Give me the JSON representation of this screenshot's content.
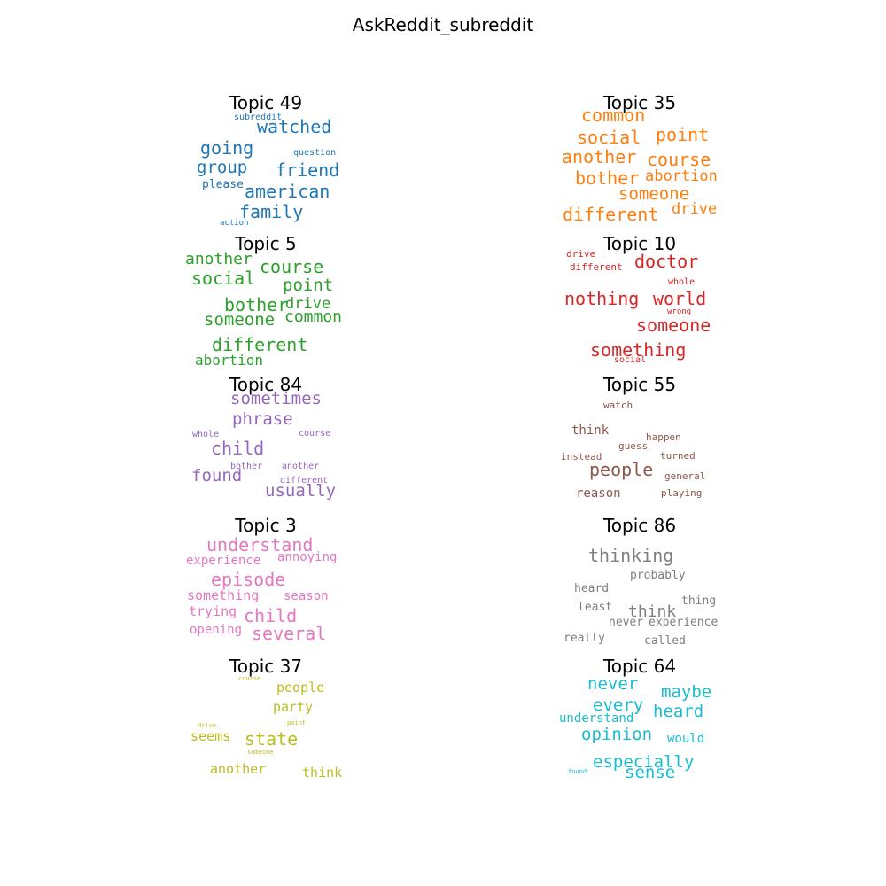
{
  "title": "AskReddit_subreddit",
  "chart_data": {
    "type": "wordcloud",
    "title": "AskReddit_subreddit",
    "topics": [
      {
        "title": "Topic 49",
        "color": "#1f77b4",
        "words": [
          "subreddit",
          "watched",
          "question",
          "going",
          "group",
          "friend",
          "please",
          "american",
          "family",
          "action"
        ]
      },
      {
        "title": "Topic 35",
        "color": "#ff7f0e",
        "words": [
          "common",
          "social",
          "point",
          "another",
          "course",
          "bother",
          "abortion",
          "someone",
          "different",
          "drive"
        ]
      },
      {
        "title": "Topic 5",
        "color": "#2ca02c",
        "words": [
          "another",
          "course",
          "social",
          "point",
          "bother",
          "drive",
          "someone",
          "common",
          "different",
          "abortion"
        ]
      },
      {
        "title": "Topic 10",
        "color": "#d62728",
        "words": [
          "drive",
          "different",
          "doctor",
          "whole",
          "nothing",
          "world",
          "someone",
          "wrong",
          "something",
          "social"
        ]
      },
      {
        "title": "Topic 84",
        "color": "#9467bd",
        "words": [
          "sometimes",
          "phrase",
          "whole",
          "course",
          "child",
          "bother",
          "another",
          "different",
          "found",
          "usually"
        ]
      },
      {
        "title": "Topic 55",
        "color": "#8c564b",
        "words": [
          "watch",
          "think",
          "happen",
          "guess",
          "instead",
          "turned",
          "people",
          "general",
          "reason",
          "playing"
        ]
      },
      {
        "title": "Topic 3",
        "color": "#e377c2",
        "words": [
          "understand",
          "experience",
          "annoying",
          "episode",
          "something",
          "season",
          "trying",
          "child",
          "opening",
          "several"
        ]
      },
      {
        "title": "Topic 86",
        "color": "#7f7f7f",
        "words": [
          "thinking",
          "probably",
          "heard",
          "thing",
          "least",
          "think",
          "never",
          "experience",
          "really",
          "called"
        ]
      },
      {
        "title": "Topic 37",
        "color": "#bcbd22",
        "words": [
          "course",
          "people",
          "party",
          "point",
          "drive",
          "seems",
          "state",
          "someone",
          "another",
          "think"
        ]
      },
      {
        "title": "Topic 64",
        "color": "#17becf",
        "words": [
          "never",
          "maybe",
          "every",
          "heard",
          "understand",
          "opinion",
          "would",
          "especially",
          "sense",
          "found"
        ]
      }
    ]
  }
}
